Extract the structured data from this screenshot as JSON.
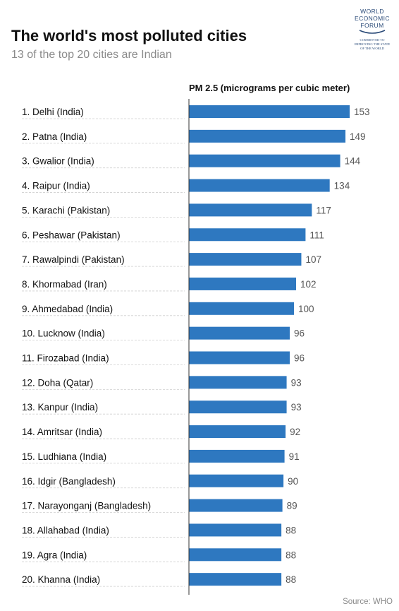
{
  "header": {
    "title": "The world's most polluted cities",
    "subtitle": "13 of the top 20 cities are Indian"
  },
  "logo": {
    "lines": [
      "WORLD",
      "ECONOMIC",
      "FORUM"
    ],
    "tagline": [
      "COMMITTED TO",
      "IMPROVING THE STATE",
      "OF THE WORLD"
    ],
    "color": "#2a4a78"
  },
  "source": "Source: WHO",
  "chart_data": {
    "type": "bar",
    "orientation": "horizontal",
    "ylabel": "PM 2.5 (micrograms per cubic meter)",
    "categories": [
      "1. Delhi (India)",
      "2. Patna (India)",
      "3. Gwalior (India)",
      "4. Raipur (India)",
      "5. Karachi (Pakistan)",
      "6. Peshawar (Pakistan)",
      "7. Rawalpindi (Pakistan)",
      "8. Khormabad (Iran)",
      "9. Ahmedabad (India)",
      "10. Lucknow (India)",
      "11. Firozabad (India)",
      "12. Doha (Qatar)",
      "13. Kanpur (India)",
      "14. Amritsar (India)",
      "15. Ludhiana (India)",
      "16. Idgir (Bangladesh)",
      "17. Narayonganj (Bangladesh)",
      "18. Allahabad (India)",
      "19. Agra (India)",
      "20. Khanna (India)"
    ],
    "values": [
      153,
      149,
      144,
      134,
      117,
      111,
      107,
      102,
      100,
      96,
      96,
      93,
      93,
      92,
      91,
      90,
      89,
      88,
      88,
      88
    ],
    "bar_color": "#2e78c0",
    "grid": false
  }
}
